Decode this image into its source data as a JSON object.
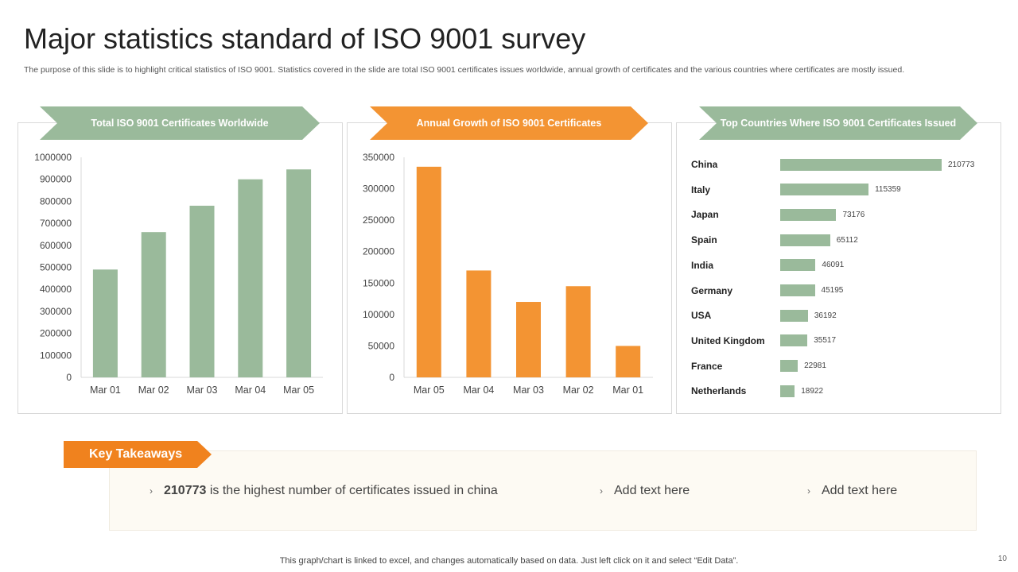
{
  "title": "Major statistics standard of ISO 9001 survey",
  "description": "The purpose of this slide is to highlight critical statistics of ISO 9001. Statistics covered in the slide are total ISO 9001 certificates issues worldwide, annual growth of certificates and the various countries where certificates are mostly issued.",
  "colors": {
    "green": "#9aba9b",
    "orange": "#f39433"
  },
  "chart_data": [
    {
      "type": "bar",
      "title": "Total ISO 9001  Certificates Worldwide",
      "categories": [
        "Mar 01",
        "Mar 02",
        "Mar 03",
        "Mar 04",
        "Mar 05"
      ],
      "values": [
        490000,
        660000,
        780000,
        900000,
        945000
      ],
      "ylim": [
        0,
        1000000
      ],
      "yticks": [
        "0",
        "100000",
        "200000",
        "300000",
        "400000",
        "500000",
        "600000",
        "700000",
        "800000",
        "900000",
        "1000000"
      ],
      "color": "#9aba9b",
      "grid": false
    },
    {
      "type": "bar",
      "title": "Annual Growth of ISO 9001  Certificates",
      "categories": [
        "Mar 05",
        "Mar 04",
        "Mar 03",
        "Mar 02",
        "Mar 01"
      ],
      "values": [
        335000,
        170000,
        120000,
        145000,
        50000
      ],
      "ylim": [
        0,
        350000
      ],
      "yticks": [
        "0",
        "50000",
        "100000",
        "150000",
        "200000",
        "250000",
        "300000",
        "350000"
      ],
      "color": "#f39433",
      "grid": false
    },
    {
      "type": "bar",
      "orientation": "horizontal",
      "title": "Top Countries Where ISO 9001  Certificates Issued",
      "categories": [
        "China",
        "Italy",
        "Japan",
        "Spain",
        "India",
        "Germany",
        "USA",
        "United Kingdom",
        "France",
        "Netherlands"
      ],
      "values": [
        210773,
        115359,
        73176,
        65112,
        46091,
        45195,
        36192,
        35517,
        22981,
        18922
      ],
      "color": "#9aba9b",
      "data_labels": true
    }
  ],
  "takeaways": {
    "label": "Key Takeaways",
    "items": [
      {
        "bold": "210773",
        "text": "is the highest number of certificates issued in china"
      },
      {
        "bold": "",
        "text": "Add text here"
      },
      {
        "bold": "",
        "text": "Add text here"
      }
    ]
  },
  "footer": "This graph/chart is linked to excel,  and changes automatically based on data. Just left click on it and select “Edit Data”.",
  "page_number": "10"
}
